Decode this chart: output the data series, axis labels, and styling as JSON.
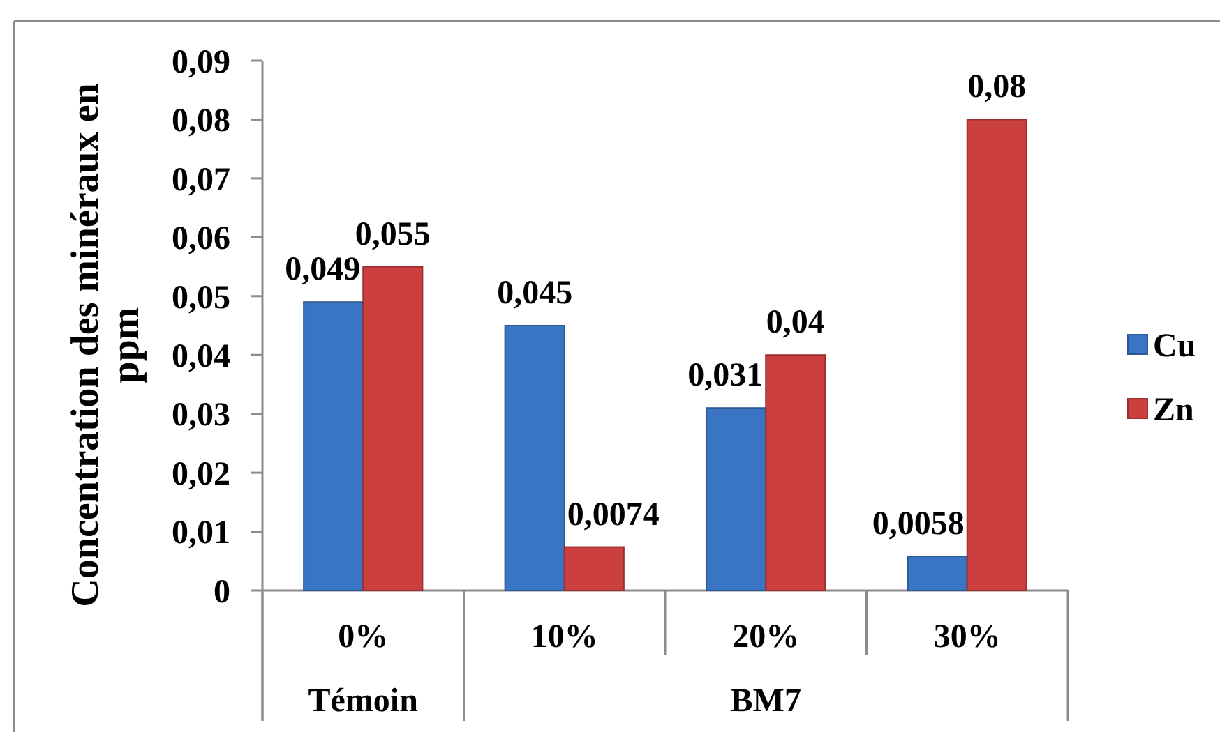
{
  "chart_data": {
    "type": "bar",
    "ylabel": "Concentration des minéraux en ppm",
    "categories": [
      "0%",
      "10%",
      "20%",
      "30%"
    ],
    "series": [
      {
        "name": "Cu",
        "color": "#3a75c4",
        "values": [
          0.049,
          0.045,
          0.031,
          0.0058
        ],
        "value_labels": [
          "0,049",
          "0,045",
          "0,031",
          "0,0058"
        ]
      },
      {
        "name": "Zn",
        "color": "#cb3f3e",
        "values": [
          0.055,
          0.0074,
          0.04,
          0.08
        ],
        "value_labels": [
          "0,055",
          "0,0074",
          "0,04",
          "0,08"
        ]
      }
    ],
    "ylim": [
      0,
      0.09
    ],
    "yticks": [
      0,
      {
        "value": 0.01,
        "label": "0,01"
      },
      {
        "value": 0.02,
        "label": "0,02"
      },
      {
        "value": 0.03,
        "label": "0,03"
      },
      {
        "value": 0.04,
        "label": "0,04"
      },
      {
        "value": 0.05,
        "label": "0,05"
      },
      {
        "value": 0.06,
        "label": "0,06"
      },
      {
        "value": 0.07,
        "label": "0,07"
      },
      {
        "value": 0.08,
        "label": "0,08"
      },
      {
        "value": 0.09,
        "label": "0,09"
      }
    ],
    "annotations": [
      "Témoin",
      "BM7"
    ],
    "legend": "right"
  }
}
